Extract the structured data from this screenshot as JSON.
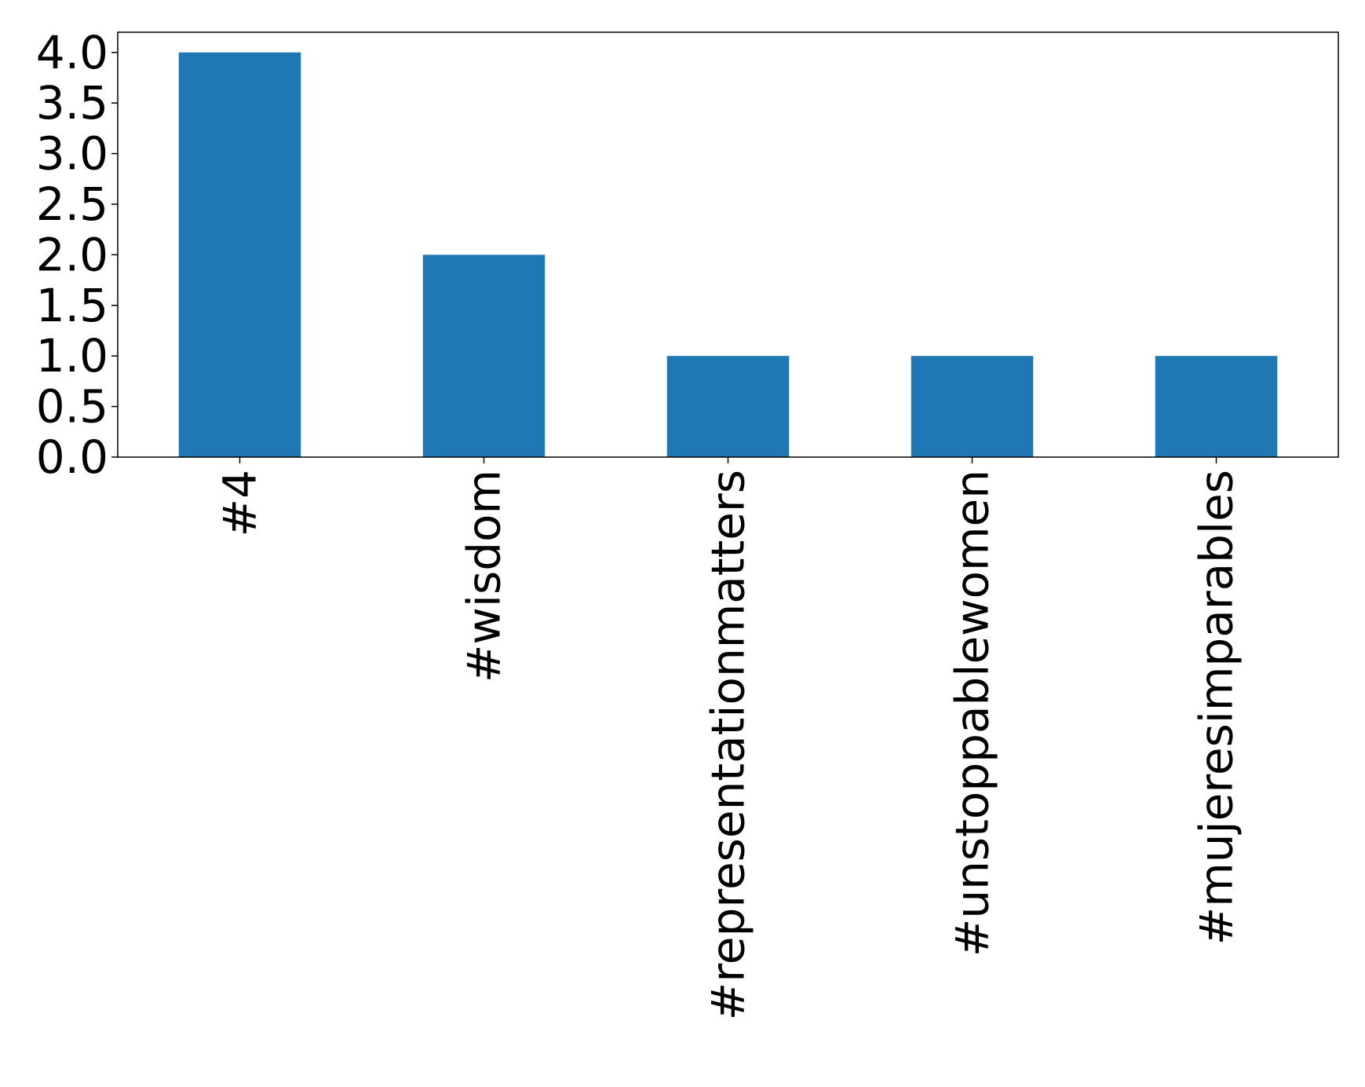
{
  "chart_data": {
    "type": "bar",
    "title": "",
    "xlabel": "",
    "ylabel": "",
    "categories": [
      "#4",
      "#wisdom",
      "#representationmatters",
      "#unstoppablewomen",
      "#mujeresimparables"
    ],
    "values": [
      4,
      2,
      1,
      1,
      1
    ],
    "ylim": [
      0,
      4.2
    ],
    "yticks": [
      "0.0",
      "0.5",
      "1.0",
      "1.5",
      "2.0",
      "2.5",
      "3.0",
      "3.5",
      "4.0"
    ],
    "bar_color": "#1f77b4",
    "grid": false,
    "legend": "none"
  }
}
